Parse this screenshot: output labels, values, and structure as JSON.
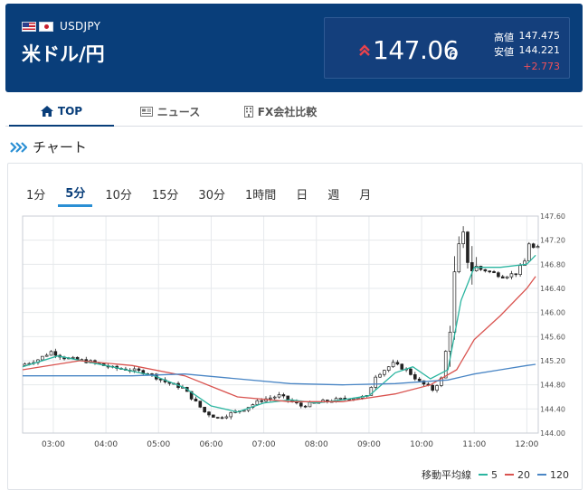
{
  "header": {
    "pair_code": "USDJPY",
    "pair_name": "米ドル/円",
    "price_main": "147.06",
    "price_sub": "6",
    "high_label": "高値",
    "high_value": "147.475",
    "low_label": "安値",
    "low_value": "144.221",
    "change": "+2.773",
    "colors": {
      "background": "#093e7a",
      "up": "#e8424d"
    }
  },
  "tabs": [
    {
      "label": "TOP",
      "icon": "home-icon",
      "active": true
    },
    {
      "label": "ニュース",
      "icon": "newspaper-icon",
      "active": false
    },
    {
      "label": "FX会社比較",
      "icon": "building-icon",
      "active": false
    }
  ],
  "section": {
    "title": "チャート",
    "icon": "chevrons-right-icon"
  },
  "period_tabs": [
    "1分",
    "5分",
    "10分",
    "15分",
    "30分",
    "1時間",
    "日",
    "週",
    "月"
  ],
  "period_active": "5分",
  "legend": {
    "title": "移動平均線",
    "items": [
      {
        "label": "5",
        "color": "#2bb5a0"
      },
      {
        "label": "20",
        "color": "#d9534f"
      },
      {
        "label": "120",
        "color": "#4a86c5"
      }
    ]
  },
  "chart_data": {
    "type": "candlestick",
    "x_ticks": [
      "03:00",
      "04:00",
      "05:00",
      "06:00",
      "07:00",
      "08:00",
      "09:00",
      "10:00",
      "11:00",
      "12:00"
    ],
    "y_ticks": [
      "147.60",
      "147.20",
      "146.80",
      "146.40",
      "146.00",
      "145.60",
      "145.20",
      "144.80",
      "144.40",
      "144.00"
    ],
    "ylim": [
      144.0,
      147.6
    ],
    "grid": true,
    "x_start_time": "02:25",
    "interval_minutes": 5,
    "price_path": [
      [
        "02:25",
        145.12
      ],
      [
        "02:45",
        145.22
      ],
      [
        "03:00",
        145.35
      ],
      [
        "03:15",
        145.25
      ],
      [
        "03:45",
        145.18
      ],
      [
        "04:10",
        145.08
      ],
      [
        "04:30",
        145.05
      ],
      [
        "04:50",
        145.0
      ],
      [
        "05:10",
        144.85
      ],
      [
        "05:30",
        144.75
      ],
      [
        "05:55",
        144.35
      ],
      [
        "06:10",
        144.25
      ],
      [
        "06:40",
        144.4
      ],
      [
        "07:00",
        144.55
      ],
      [
        "07:20",
        144.62
      ],
      [
        "07:45",
        144.45
      ],
      [
        "08:10",
        144.52
      ],
      [
        "08:40",
        144.58
      ],
      [
        "09:00",
        144.6
      ],
      [
        "09:10",
        144.95
      ],
      [
        "09:30",
        145.15
      ],
      [
        "09:45",
        145.05
      ],
      [
        "10:00",
        144.85
      ],
      [
        "10:15",
        144.72
      ],
      [
        "10:25",
        144.9
      ],
      [
        "10:35",
        145.8
      ],
      [
        "10:42",
        146.9
      ],
      [
        "10:50",
        147.2
      ],
      [
        "10:58",
        146.75
      ],
      [
        "11:15",
        146.7
      ],
      [
        "11:35",
        146.6
      ],
      [
        "11:50",
        146.65
      ],
      [
        "12:00",
        146.85
      ],
      [
        "12:05",
        147.15
      ],
      [
        "12:10",
        147.07
      ]
    ],
    "ma": {
      "5": [
        [
          "02:25",
          145.1
        ],
        [
          "03:05",
          145.28
        ],
        [
          "04:00",
          145.12
        ],
        [
          "04:55",
          144.95
        ],
        [
          "05:30",
          144.75
        ],
        [
          "06:00",
          144.45
        ],
        [
          "06:30",
          144.35
        ],
        [
          "07:00",
          144.5
        ],
        [
          "07:30",
          144.55
        ],
        [
          "08:00",
          144.5
        ],
        [
          "08:30",
          144.55
        ],
        [
          "09:00",
          144.62
        ],
        [
          "09:30",
          145.0
        ],
        [
          "09:50",
          145.1
        ],
        [
          "10:10",
          144.9
        ],
        [
          "10:30",
          145.05
        ],
        [
          "10:45",
          146.2
        ],
        [
          "11:00",
          146.75
        ],
        [
          "11:30",
          146.75
        ],
        [
          "12:00",
          146.8
        ],
        [
          "12:10",
          146.95
        ]
      ],
      "20": [
        [
          "02:25",
          145.05
        ],
        [
          "03:30",
          145.2
        ],
        [
          "04:30",
          145.12
        ],
        [
          "05:30",
          144.95
        ],
        [
          "06:30",
          144.6
        ],
        [
          "07:30",
          144.52
        ],
        [
          "08:30",
          144.52
        ],
        [
          "09:30",
          144.65
        ],
        [
          "10:10",
          144.8
        ],
        [
          "10:40",
          145.05
        ],
        [
          "11:00",
          145.55
        ],
        [
          "11:30",
          145.95
        ],
        [
          "12:00",
          146.4
        ],
        [
          "12:10",
          146.6
        ]
      ],
      "120": [
        [
          "02:25",
          144.95
        ],
        [
          "03:30",
          144.95
        ],
        [
          "04:30",
          144.95
        ],
        [
          "05:30",
          144.98
        ],
        [
          "06:30",
          144.9
        ],
        [
          "07:30",
          144.82
        ],
        [
          "08:30",
          144.8
        ],
        [
          "09:30",
          144.82
        ],
        [
          "10:30",
          144.88
        ],
        [
          "11:00",
          144.98
        ],
        [
          "11:30",
          145.05
        ],
        [
          "12:00",
          145.12
        ],
        [
          "12:10",
          145.14
        ]
      ]
    }
  }
}
